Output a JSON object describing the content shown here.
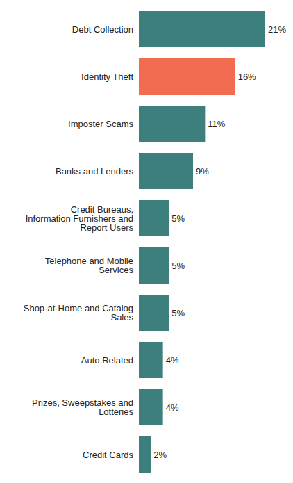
{
  "chart_data": {
    "type": "bar",
    "orientation": "horizontal",
    "categories": [
      "Debt Collection",
      "Identity Theft",
      "Imposter Scams",
      "Banks and Lenders",
      "Credit Bureaus, Information Furnishers and Report Users",
      "Telephone and Mobile Services",
      "Shop-at-Home and Catalog Sales",
      "Auto Related",
      "Prizes, Sweepstakes and Lotteries",
      "Credit Cards"
    ],
    "values": [
      21,
      16,
      11,
      9,
      5,
      5,
      5,
      4,
      4,
      2
    ],
    "value_labels": [
      "21%",
      "16%",
      "11%",
      "9%",
      "5%",
      "5%",
      "5%",
      "4%",
      "4%",
      "2%"
    ],
    "colors": [
      "#3d7f7c",
      "#f26c51",
      "#3d7f7c",
      "#3d7f7c",
      "#3d7f7c",
      "#3d7f7c",
      "#3d7f7c",
      "#3d7f7c",
      "#3d7f7c",
      "#3d7f7c"
    ],
    "data_labels": true,
    "tick_labels": "y",
    "grid": false
  }
}
